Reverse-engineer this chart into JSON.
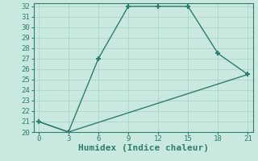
{
  "line1_x": [
    0,
    3,
    6,
    9,
    12,
    15,
    18,
    21
  ],
  "line1_y": [
    21,
    20,
    27,
    32,
    32,
    32,
    27.5,
    25.5
  ],
  "line2_x": [
    0,
    3,
    21
  ],
  "line2_y": [
    21,
    20,
    25.5
  ],
  "color": "#2e7d6e",
  "bg_color": "#c8e8e0",
  "grid_color": "#aacfc8",
  "xlabel": "Humidex (Indice chaleur)",
  "xlim": [
    -0.5,
    21.5
  ],
  "ylim": [
    20,
    32.3
  ],
  "xticks": [
    0,
    3,
    6,
    9,
    12,
    15,
    18,
    21
  ],
  "yticks": [
    20,
    21,
    22,
    23,
    24,
    25,
    26,
    27,
    28,
    29,
    30,
    31,
    32
  ],
  "marker": "+",
  "markersize": 5,
  "markeredgewidth": 1.5,
  "linewidth": 1.0,
  "xlabel_fontsize": 8,
  "tick_fontsize": 6.5
}
